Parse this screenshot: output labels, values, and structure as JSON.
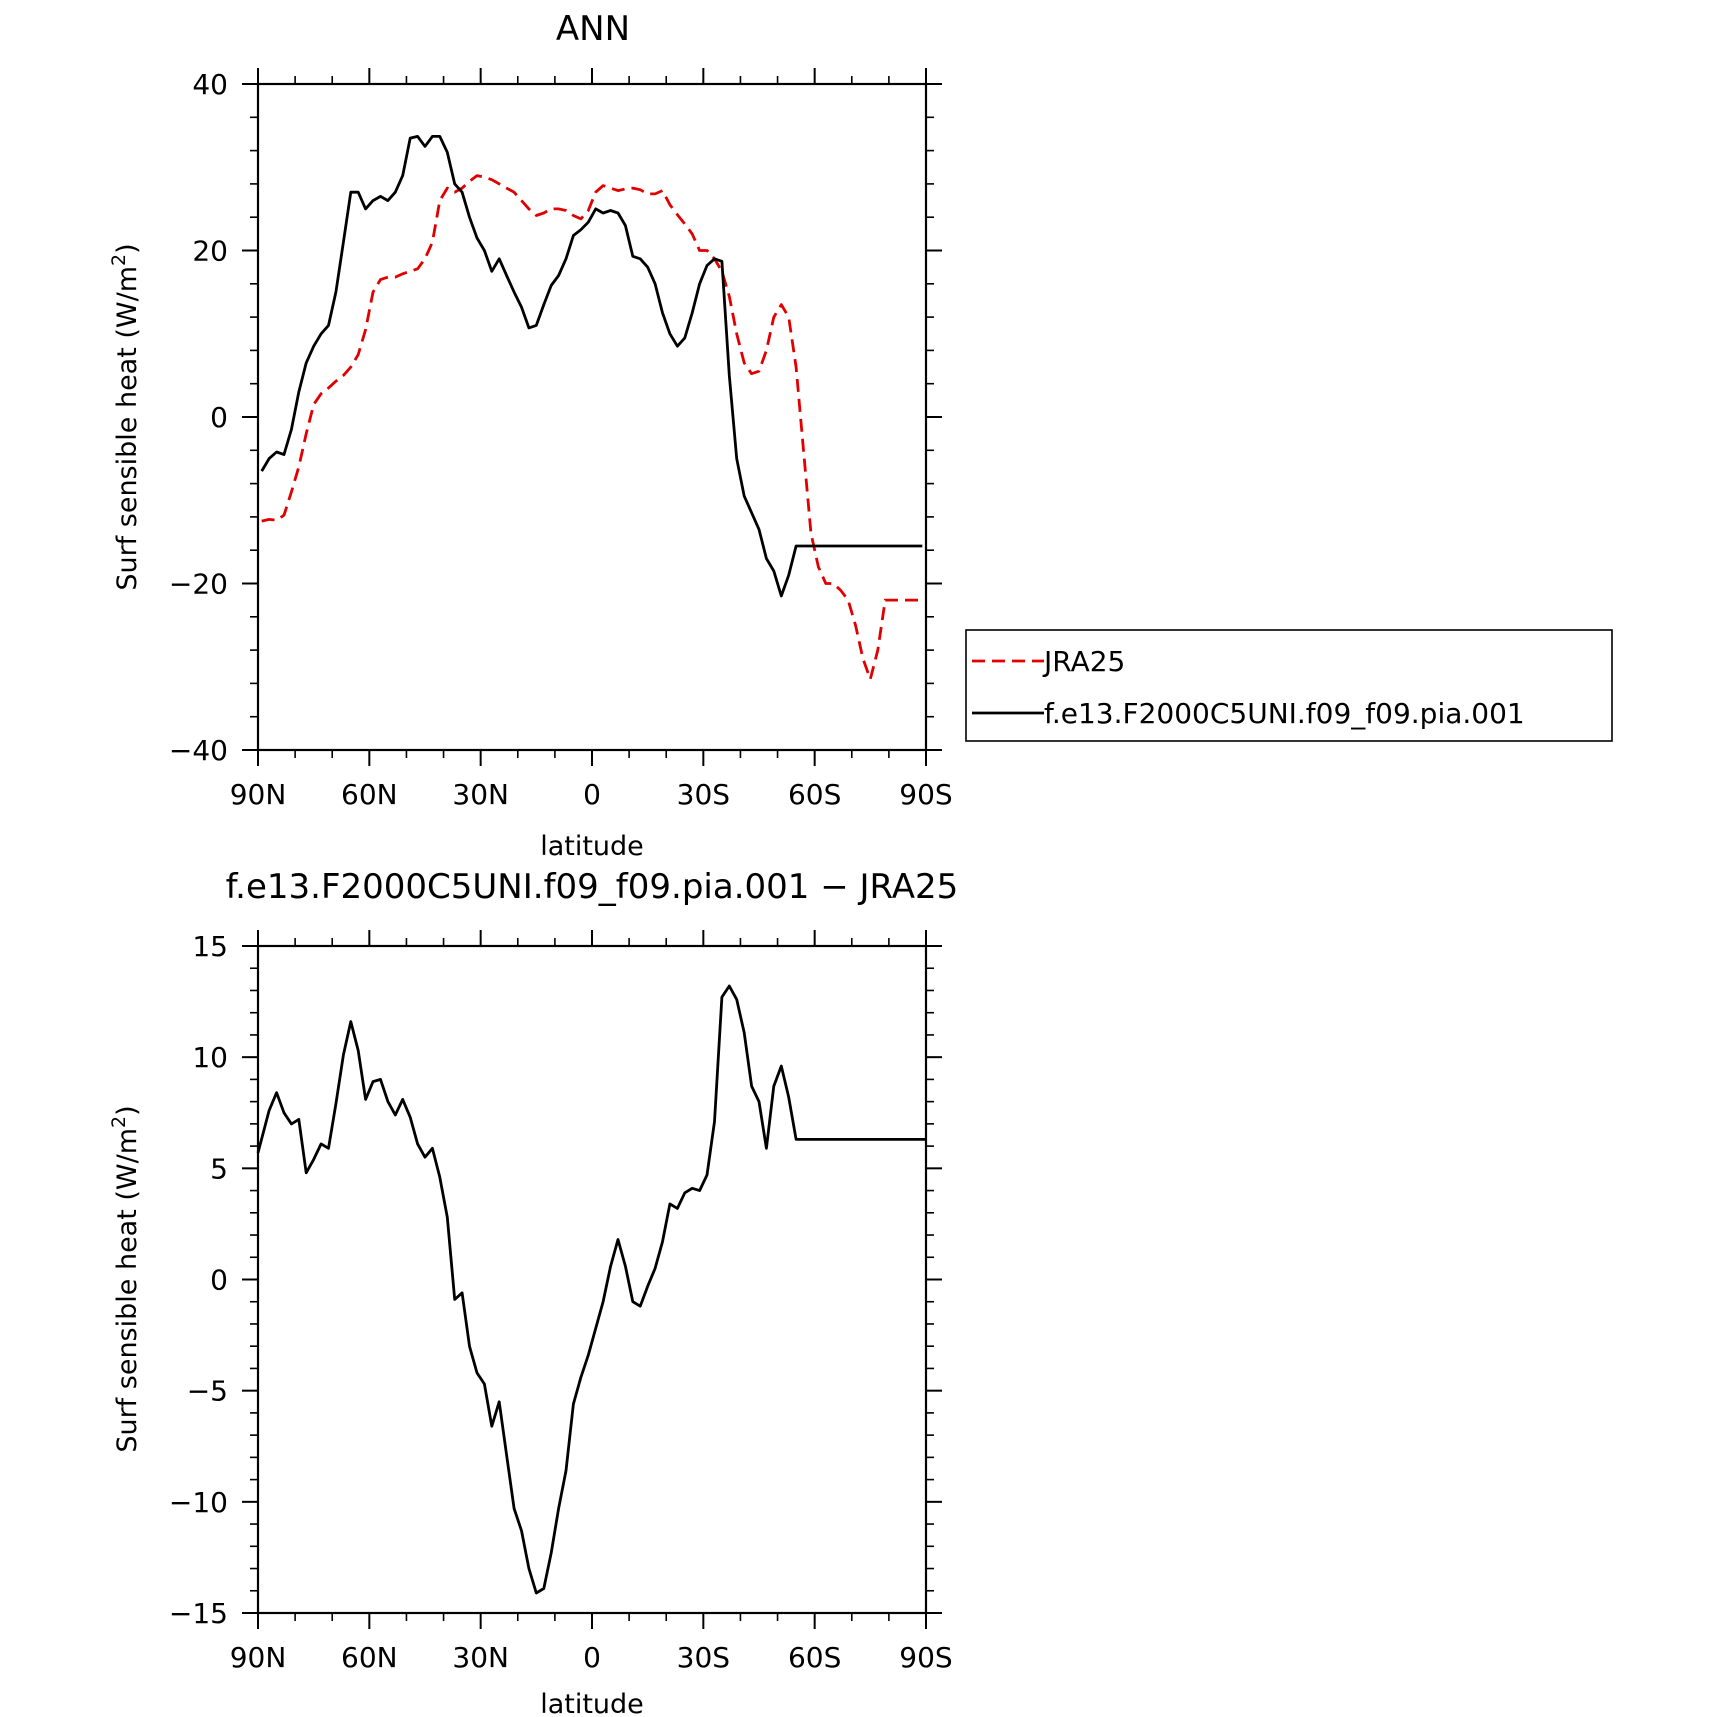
{
  "chart_data": [
    {
      "type": "line",
      "title": "ANN",
      "xlabel": "latitude",
      "ylabel": "Surf sensible heat (W/m",
      "ylabel_sup": "2",
      "ylabel_close": ")",
      "x_tick_labels": [
        "90N",
        "60N",
        "30N",
        "0",
        "30S",
        "60S",
        "90S"
      ],
      "x_tick_values": [
        90,
        60,
        30,
        0,
        -30,
        -60,
        -90
      ],
      "xlim": [
        90,
        -90
      ],
      "ylim": [
        -40,
        40
      ],
      "y_tick_values": [
        -40,
        -20,
        0,
        20,
        40
      ],
      "y_tick_labels": [
        "−40",
        "−20",
        "0",
        "20",
        "40"
      ],
      "legend_position": "right, outside plot",
      "series": [
        {
          "name": "JRA25",
          "color": "#e00000",
          "dash": "dashed",
          "x": [
            89,
            87,
            85,
            83,
            81,
            79,
            77,
            75,
            73,
            71,
            69,
            67,
            65,
            63,
            61,
            59,
            57,
            55,
            53,
            51,
            49,
            47,
            45,
            43,
            41,
            39,
            37,
            35,
            33,
            31,
            29,
            27,
            25,
            23,
            21,
            19,
            17,
            15,
            13,
            11,
            9,
            7,
            5,
            3,
            1,
            -1,
            -3,
            -5,
            -7,
            -9,
            -11,
            -13,
            -15,
            -17,
            -19,
            -21,
            -23,
            -25,
            -27,
            -29,
            -31,
            -33,
            -35,
            -37,
            -39,
            -41,
            -43,
            -45,
            -47,
            -49,
            -51,
            -53,
            -55,
            -57,
            -59,
            -61,
            -63,
            -65,
            -67,
            -69,
            -71,
            -73,
            -75,
            -77,
            -79,
            -81,
            -83,
            -85,
            -87,
            -89
          ],
          "y": [
            -12.5,
            -12.3,
            -12.4,
            -11.8,
            -9.0,
            -6.0,
            -2.0,
            1.5,
            2.8,
            3.5,
            4.3,
            5.0,
            6.0,
            7.5,
            10.5,
            15.0,
            16.5,
            16.8,
            16.8,
            17.2,
            17.5,
            17.8,
            19.0,
            21.0,
            26.0,
            27.5,
            27.0,
            27.5,
            28.3,
            29.0,
            28.8,
            28.5,
            28.0,
            27.5,
            27.0,
            26.0,
            25.0,
            24.2,
            24.5,
            25.0,
            25.0,
            24.8,
            24.2,
            23.8,
            24.8,
            27.0,
            27.8,
            27.5,
            27.2,
            27.4,
            27.5,
            27.3,
            26.8,
            26.8,
            27.2,
            25.5,
            24.3,
            23.2,
            22.0,
            20.0,
            20.0,
            19.0,
            17.5,
            14.5,
            10.0,
            6.5,
            5.2,
            5.5,
            8.0,
            12.0,
            13.5,
            12.0,
            6.0,
            -4.0,
            -14.0,
            -18.0,
            -20.0,
            -20.0,
            -20.8,
            -22.0,
            -25.0,
            -29.0,
            -31.5,
            -28.0,
            -22.0,
            -22.0,
            -22.0,
            -22.0,
            -22.0,
            -22.0
          ]
        },
        {
          "name": "f.e13.F2000C5UNI.f09_f09.pia.001",
          "color": "#000000",
          "dash": "solid",
          "x": [
            89,
            87,
            85,
            83,
            81,
            79,
            77,
            75,
            73,
            71,
            69,
            67,
            65,
            63,
            61,
            59,
            57,
            55,
            53,
            51,
            49,
            47,
            45,
            43,
            41,
            39,
            37,
            35,
            33,
            31,
            29,
            27,
            25,
            23,
            21,
            19,
            17,
            15,
            13,
            11,
            9,
            7,
            5,
            3,
            1,
            -1,
            -3,
            -5,
            -7,
            -9,
            -11,
            -13,
            -15,
            -17,
            -19,
            -21,
            -23,
            -25,
            -27,
            -29,
            -31,
            -33,
            -35,
            -37,
            -39,
            -41,
            -43,
            -45,
            -47,
            -49,
            -51,
            -53,
            -55,
            -57,
            -59,
            -61,
            -63,
            -65,
            -67,
            -69,
            -71,
            -73,
            -75,
            -77,
            -79,
            -81,
            -83,
            -85,
            -87,
            -89
          ],
          "y": [
            -6.5,
            -5.0,
            -4.2,
            -4.5,
            -1.5,
            3.0,
            6.5,
            8.5,
            10.0,
            11.0,
            15.0,
            21.0,
            27.0,
            27.0,
            25.0,
            26.0,
            26.5,
            26.0,
            27.0,
            29.0,
            33.5,
            33.7,
            32.5,
            33.7,
            33.7,
            31.8,
            28.0,
            27.0,
            24.0,
            21.5,
            20.0,
            17.5,
            19.0,
            17.0,
            15.0,
            13.2,
            10.7,
            11.0,
            13.5,
            15.8,
            17.0,
            19.0,
            21.8,
            22.5,
            23.4,
            25.0,
            24.5,
            24.8,
            24.5,
            23.0,
            19.3,
            19.0,
            18.0,
            16.0,
            12.5,
            10.0,
            8.5,
            9.5,
            12.5,
            16.0,
            18.2,
            19.0,
            18.7,
            5.0,
            -5.0,
            -9.5,
            -11.5,
            -13.5,
            -17.0,
            -18.5,
            -21.5,
            -19.0,
            -15.5,
            -15.5,
            -15.5,
            -15.5,
            -15.5,
            -15.5,
            -15.5,
            -15.5,
            -15.5,
            -15.5,
            -15.5,
            -15.5,
            -15.5,
            -15.5,
            -15.5,
            -15.5,
            -15.5,
            -15.5
          ]
        }
      ]
    },
    {
      "type": "line",
      "title": "f.e13.F2000C5UNI.f09_f09.pia.001 − JRA25",
      "xlabel": "latitude",
      "ylabel": "Surf sensible heat (W/m",
      "ylabel_sup": "2",
      "ylabel_close": ")",
      "x_tick_labels": [
        "90N",
        "60N",
        "30N",
        "0",
        "30S",
        "60S",
        "90S"
      ],
      "x_tick_values": [
        90,
        60,
        30,
        0,
        -30,
        -60,
        -90
      ],
      "xlim": [
        90,
        -90
      ],
      "ylim": [
        -15,
        15
      ],
      "y_tick_values": [
        -15,
        -10,
        -5,
        0,
        5,
        10,
        15
      ],
      "y_tick_labels": [
        "−15",
        "−10",
        "−5",
        "0",
        "5",
        "10",
        "15"
      ],
      "series": [
        {
          "color": "#000000",
          "dash": "solid",
          "x": [
            90,
            87,
            85,
            83,
            81,
            79,
            77,
            75,
            73,
            71,
            69,
            67,
            65,
            63,
            61,
            59,
            57,
            55,
            53,
            51,
            49,
            47,
            45,
            43,
            41,
            39,
            37,
            35,
            33,
            31,
            29,
            27,
            25,
            23,
            21,
            19,
            17,
            15,
            13,
            11,
            9,
            7,
            5,
            3,
            1,
            -1,
            -3,
            -5,
            -7,
            -9,
            -11,
            -13,
            -15,
            -17,
            -19,
            -21,
            -23,
            -25,
            -27,
            -29,
            -31,
            -33,
            -35,
            -37,
            -39,
            -41,
            -43,
            -45,
            -47,
            -49,
            -51,
            -53,
            -55,
            -57,
            -59,
            -61,
            -63,
            -65,
            -67,
            -69,
            -71,
            -73,
            -75,
            -77,
            -79,
            -81,
            -83,
            -85,
            -87,
            -89,
            -90
          ],
          "y": [
            5.7,
            7.6,
            8.4,
            7.5,
            7.0,
            7.2,
            4.8,
            5.4,
            6.1,
            5.9,
            7.9,
            10.1,
            11.6,
            10.3,
            8.1,
            8.9,
            9.0,
            8.0,
            7.4,
            8.1,
            7.3,
            6.1,
            5.5,
            5.9,
            4.6,
            2.8,
            -0.9,
            -0.6,
            -3.0,
            -4.2,
            -4.7,
            -6.6,
            -5.5,
            -7.9,
            -10.3,
            -11.3,
            -13.0,
            -14.1,
            -13.9,
            -12.3,
            -10.3,
            -8.6,
            -5.6,
            -4.4,
            -3.4,
            -2.2,
            -1.0,
            0.6,
            1.8,
            0.6,
            -1.0,
            -1.2,
            -0.3,
            0.5,
            1.7,
            3.4,
            3.2,
            3.9,
            4.1,
            4.0,
            4.7,
            7.1,
            12.7,
            13.2,
            12.6,
            11.1,
            8.7,
            8.0,
            5.9,
            8.7,
            9.6,
            8.2,
            6.3,
            6.3,
            6.3,
            6.3,
            6.3,
            6.3,
            6.3,
            6.3,
            6.3,
            6.3,
            6.3,
            6.3,
            6.3,
            6.3,
            6.3,
            6.3,
            6.3,
            6.3,
            6.3
          ]
        }
      ]
    }
  ]
}
